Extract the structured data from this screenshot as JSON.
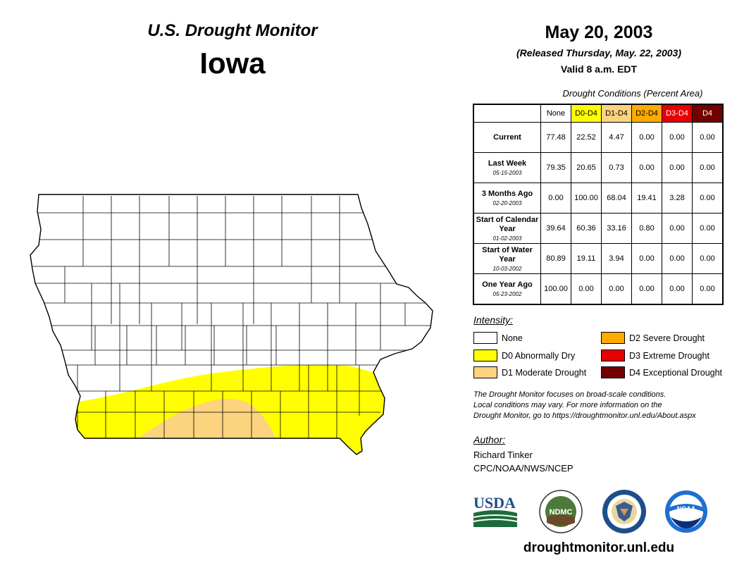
{
  "header": {
    "title": "U.S. Drought Monitor",
    "region": "Iowa",
    "date": "May 20, 2003",
    "released": "(Released Thursday, May. 22, 2003)",
    "valid": "Valid 8 a.m. EDT"
  },
  "table": {
    "caption": "Drought Conditions (Percent Area)",
    "columns": [
      "None",
      "D0-D4",
      "D1-D4",
      "D2-D4",
      "D3-D4",
      "D4"
    ],
    "column_colors": [
      "#ffffff",
      "#ffff00",
      "#fcd37f",
      "#ffaa00",
      "#e60000",
      "#730000"
    ],
    "rows": [
      {
        "label": "Current",
        "date": "",
        "values": [
          "77.48",
          "22.52",
          "4.47",
          "0.00",
          "0.00",
          "0.00"
        ]
      },
      {
        "label": "Last Week",
        "date": "05-15-2003",
        "values": [
          "79.35",
          "20.65",
          "0.73",
          "0.00",
          "0.00",
          "0.00"
        ]
      },
      {
        "label": "3 Months Ago",
        "date": "02-20-2003",
        "values": [
          "0.00",
          "100.00",
          "68.04",
          "19.41",
          "3.28",
          "0.00"
        ]
      },
      {
        "label": "Start of Calendar Year",
        "date": "01-02-2003",
        "values": [
          "39.64",
          "60.36",
          "33.16",
          "0.80",
          "0.00",
          "0.00"
        ]
      },
      {
        "label": "Start of Water Year",
        "date": "10-03-2002",
        "values": [
          "80.89",
          "19.11",
          "3.94",
          "0.00",
          "0.00",
          "0.00"
        ]
      },
      {
        "label": "One Year Ago",
        "date": "05-23-2002",
        "values": [
          "100.00",
          "0.00",
          "0.00",
          "0.00",
          "0.00",
          "0.00"
        ]
      }
    ]
  },
  "legend": {
    "title": "Intensity:",
    "items": [
      {
        "label": "None",
        "color": "#ffffff"
      },
      {
        "label": "D0 Abnormally Dry",
        "color": "#ffff00"
      },
      {
        "label": "D1 Moderate Drought",
        "color": "#fcd37f"
      },
      {
        "label": "D2 Severe Drought",
        "color": "#ffaa00"
      },
      {
        "label": "D3 Extreme Drought",
        "color": "#e60000"
      },
      {
        "label": "D4 Exceptional Drought",
        "color": "#730000"
      }
    ]
  },
  "note": {
    "line1": "The Drought Monitor focuses on broad-scale conditions.",
    "line2": "Local conditions may vary. For more information on the",
    "line3": "Drought Monitor, go to https://droughtmonitor.unl.edu/About.aspx"
  },
  "author": {
    "title": "Author:",
    "name": "Richard Tinker",
    "org": "CPC/NOAA/NWS/NCEP"
  },
  "logos": {
    "usda": "USDA",
    "ndmc": "NDMC",
    "noaa": "NOAA"
  },
  "footer": {
    "site": "droughtmonitor.unl.edu"
  }
}
